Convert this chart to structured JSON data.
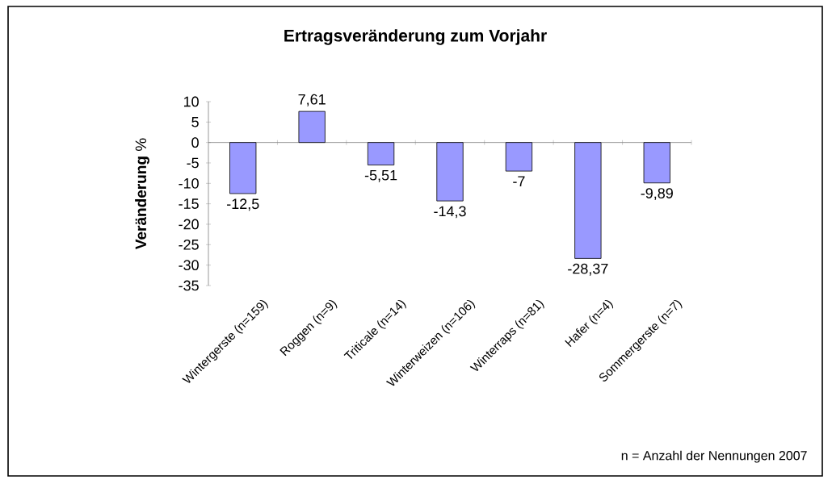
{
  "chart_data": {
    "type": "bar",
    "title": "Ertragsveränderung zum Vorjahr",
    "ylabel": "**Veränderung** %",
    "categories": [
      "Wintergerste (n=159)",
      "Roggen (n=9)",
      "Triticale (n=14)",
      "Winterweizen (n=106)",
      "Winterraps (n=81)",
      "Hafer (n=4)",
      "Sommergerste (n=7)"
    ],
    "values": [
      -12.5,
      7.61,
      -5.51,
      -14.3,
      -7,
      -28.37,
      -9.89
    ],
    "value_labels": [
      "-12,5",
      "7,61",
      "-5,51",
      "-14,3",
      "-7",
      "-28,37",
      "-9,89"
    ],
    "color": "#9999ff",
    "ylim": [
      -35,
      10
    ],
    "yticks": [
      -35,
      -30,
      -25,
      -20,
      -15,
      -10,
      -5,
      0,
      5,
      10
    ],
    "annotations": [
      "n = Anzahl der Nennungen 2007"
    ]
  }
}
